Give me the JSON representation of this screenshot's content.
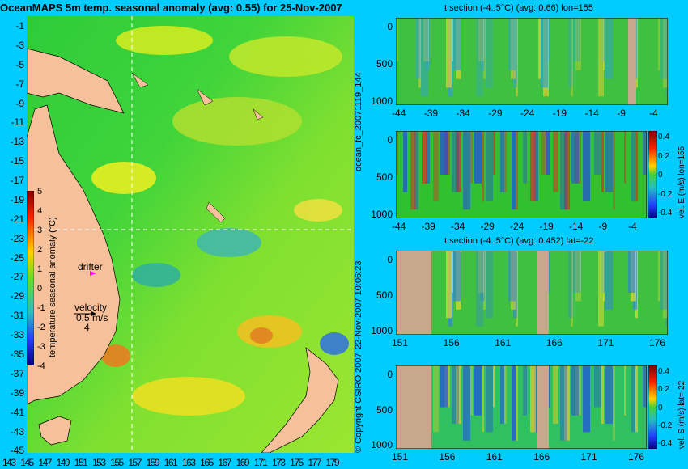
{
  "title": "OceanMAPS 5m temp. seasonal anomaly (avg: 0.55) for 25-Nov-2007",
  "map": {
    "lat_ticks": [
      "-1",
      "-3",
      "-5",
      "-7",
      "-9",
      "-11",
      "-13",
      "-15",
      "-17",
      "-19",
      "-21",
      "-23",
      "-25",
      "-27",
      "-29",
      "-31",
      "-33",
      "-35",
      "-37",
      "-39",
      "-41",
      "-43",
      "-45"
    ],
    "lon_ticks": [
      "143",
      "145",
      "147",
      "149",
      "151",
      "153",
      "155",
      "157",
      "159",
      "161",
      "163",
      "165",
      "167",
      "169",
      "171",
      "173",
      "175",
      "177",
      "179"
    ],
    "colorbar": {
      "ticks": [
        "5",
        "4",
        "3",
        "2",
        "1",
        "0",
        "-1",
        "-2",
        "-3",
        "-4"
      ],
      "label": "temperature seasonal anomaly (°C)"
    },
    "drifter_label": "drifter",
    "velocity_label": "velocity",
    "velocity_value": "0.5 m/s",
    "velocity_scale": "4"
  },
  "sections": [
    {
      "title": "t section (-4..5°C) (avg: 0.66) lon=155",
      "depth_ticks": [
        "0",
        "500",
        "1000"
      ],
      "x_ticks": [
        "-44",
        "-39",
        "-34",
        "-29",
        "-24",
        "-19",
        "-14",
        "-9",
        "-4"
      ]
    },
    {
      "title": "",
      "depth_ticks": [
        "0",
        "500",
        "1000"
      ],
      "x_ticks": [
        "-44",
        "-39",
        "-34",
        "-29",
        "-24",
        "-19",
        "-14",
        "-9",
        "-4"
      ],
      "colorbar_ticks": [
        "0.4",
        "0.2",
        "0",
        "-0.2",
        "-0.4"
      ],
      "colorbar_label": "vel. E (m/s) lon=155"
    },
    {
      "title": "t section (-4..5°C) (avg: 0.452) lat=-22",
      "depth_ticks": [
        "0",
        "500",
        "1000"
      ],
      "x_ticks": [
        "151",
        "156",
        "161",
        "166",
        "171",
        "176"
      ]
    },
    {
      "title": "",
      "depth_ticks": [
        "0",
        "500",
        "1000"
      ],
      "x_ticks": [
        "151",
        "156",
        "161",
        "166",
        "171",
        "176"
      ],
      "colorbar_ticks": [
        "0.4",
        "0.2",
        "0",
        "-0.2",
        "-0.4"
      ],
      "colorbar_label": "vel. S (m/s) lat=-22"
    }
  ],
  "side_labels": {
    "forecast": "ocean_fc_20071119_144",
    "date": "22-Nov-2007 10:06:23",
    "copyright": "© Copyright CSIRO 2007"
  }
}
